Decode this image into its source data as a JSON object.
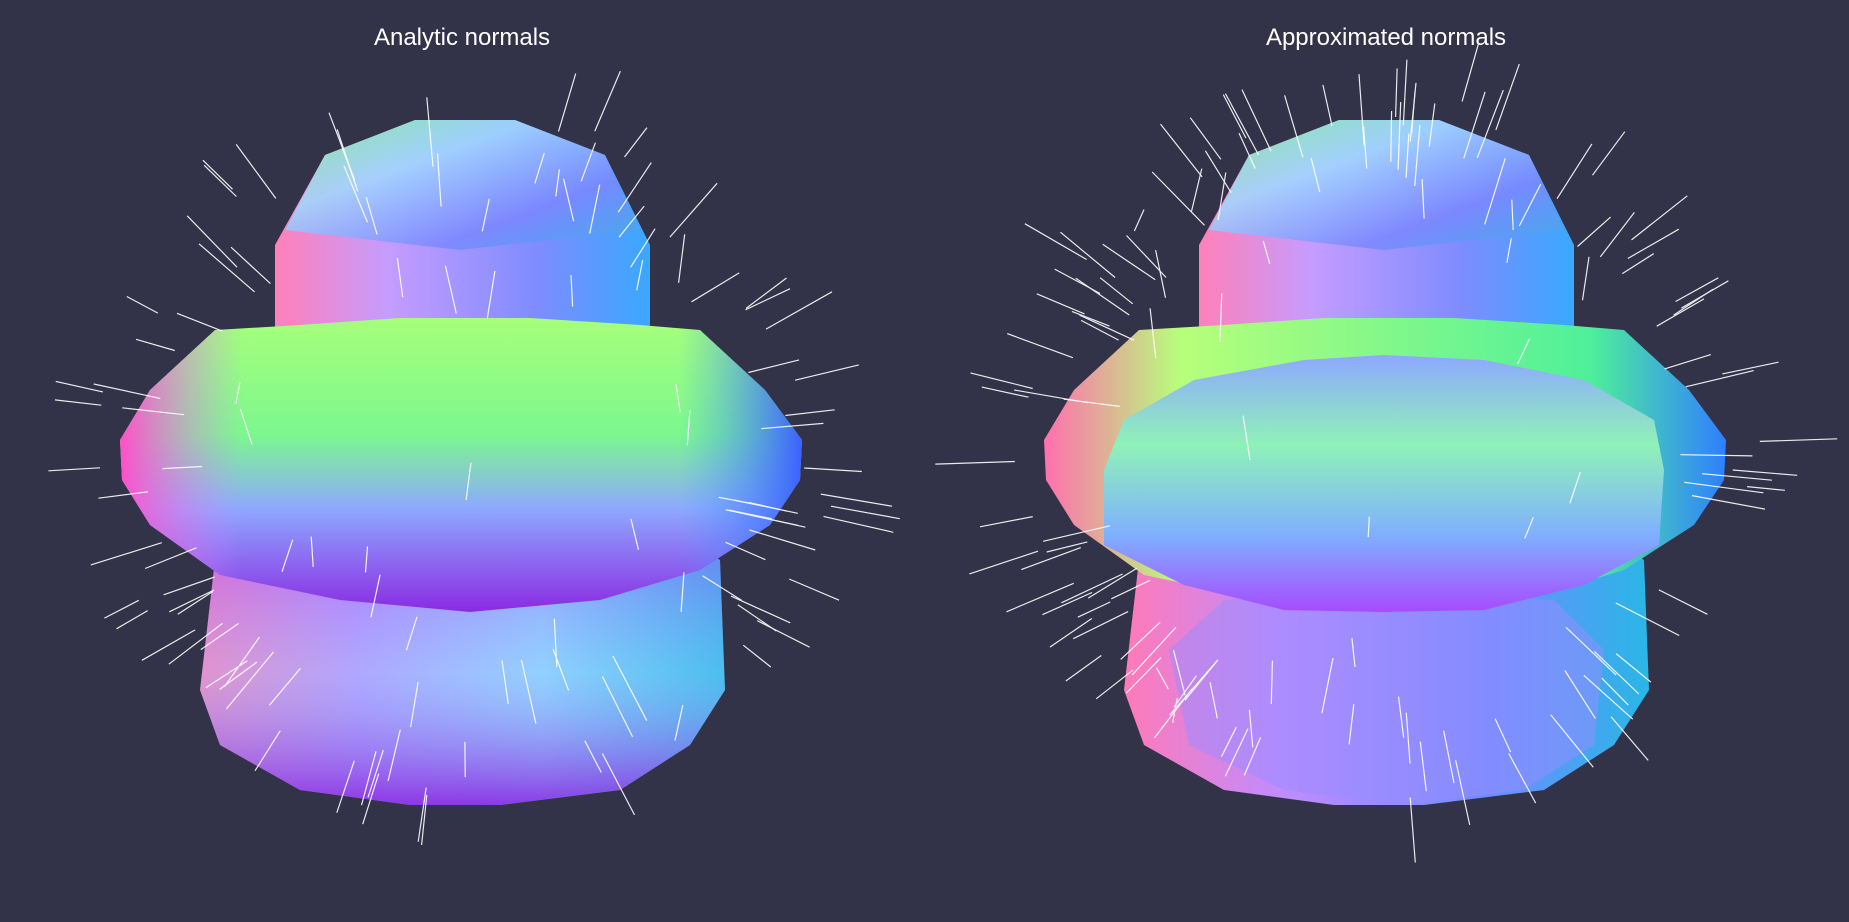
{
  "panels": [
    {
      "id": "analytic",
      "title": "Analytic normals"
    },
    {
      "id": "approximated",
      "title": "Approximated normals"
    }
  ],
  "colors": {
    "background": "#323248",
    "title_text": "#ffffff",
    "normal_lines": "#ffffff",
    "shape_green": "#7cf78f",
    "shape_blue": "#6f86ff",
    "shape_pink": "#ff6fae",
    "shape_purple": "#8a2be2",
    "shape_cyan": "#3fd4d4"
  }
}
